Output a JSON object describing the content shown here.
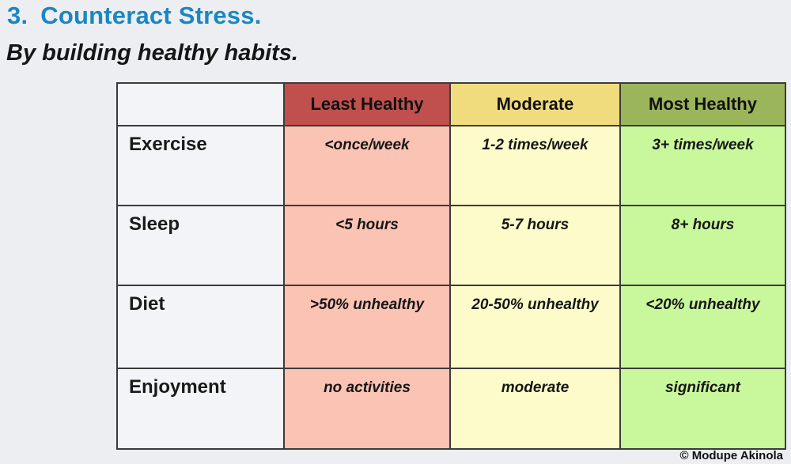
{
  "slide": {
    "title_number": "3.",
    "title_text": "Counteract Stress.",
    "subtitle": "By building healthy habits.",
    "credit": "© Modupe Akinola",
    "colors": {
      "title_blue": "#1987C1",
      "background": "#ECEEF1",
      "grid_line": "#3b3b3b",
      "header_least_healthy": "#C0504D",
      "header_moderate": "#F0DC7D",
      "header_most_healthy": "#9BB55A",
      "body_least_healthy": "#FBC3B3",
      "body_moderate": "#FCFBC9",
      "body_most_healthy": "#C9F89C",
      "label_cell": "#F3F4F7"
    }
  },
  "table": {
    "columns": [
      {
        "label": ""
      },
      {
        "label": "Least Healthy"
      },
      {
        "label": "Moderate"
      },
      {
        "label": "Most Healthy"
      }
    ],
    "rows": [
      {
        "label": "Exercise",
        "cells": [
          "<once/week",
          "1-2 times/week",
          "3+ times/week"
        ]
      },
      {
        "label": "Sleep",
        "cells": [
          "<5 hours",
          "5-7 hours",
          "8+ hours"
        ]
      },
      {
        "label": "Diet",
        "cells": [
          ">50% unhealthy",
          "20-50% unhealthy",
          "<20% unhealthy"
        ]
      },
      {
        "label": "Enjoyment",
        "cells": [
          "no activities",
          "moderate",
          "significant"
        ]
      }
    ]
  }
}
